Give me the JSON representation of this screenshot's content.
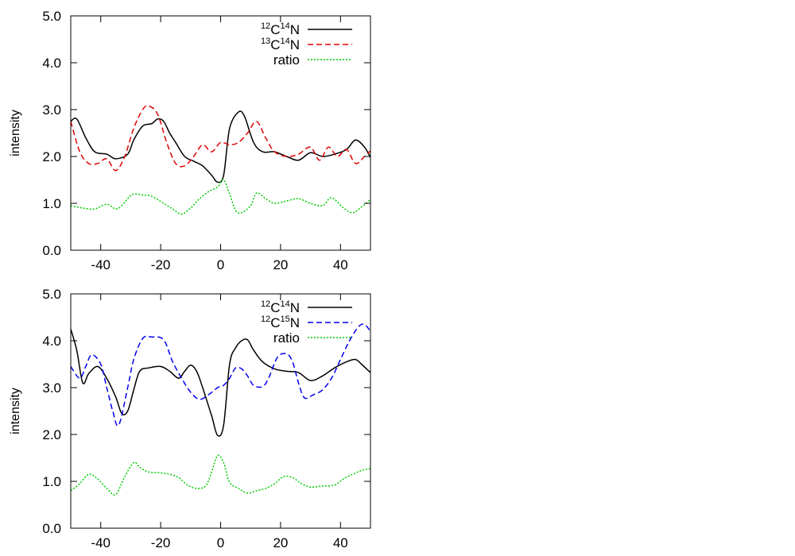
{
  "chart_data": [
    {
      "type": "line",
      "xlabel": "",
      "ylabel": "intensity",
      "xlim": [
        -50,
        50
      ],
      "ylim": [
        0,
        5
      ],
      "xticks": [
        -40,
        -20,
        0,
        20,
        40
      ],
      "xtick_labels": [
        "-40",
        "-20",
        "0",
        "20",
        "40"
      ],
      "yticks": [
        0,
        1,
        2,
        3,
        4,
        5
      ],
      "ytick_labels": [
        "0.0",
        "1.0",
        "2.0",
        "3.0",
        "4.0",
        "5.0"
      ],
      "legend_position": "top-right",
      "series": [
        {
          "name": "12C14N",
          "legend": {
            "sup1": "12",
            "el1": "C",
            "sup2": "14",
            "el2": "N"
          },
          "color": "#000000",
          "dash": "solid",
          "x": [
            -50,
            -48,
            -45,
            -42,
            -38,
            -35,
            -31,
            -29,
            -26,
            -23,
            -21,
            -19,
            -17,
            -15,
            -12,
            -9,
            -6,
            -3,
            -1,
            1,
            3,
            6,
            8,
            11,
            14,
            18,
            22,
            26,
            30,
            34,
            38,
            42,
            45,
            48,
            50
          ],
          "y": [
            2.75,
            2.8,
            2.4,
            2.1,
            2.05,
            1.95,
            2.05,
            2.35,
            2.65,
            2.7,
            2.8,
            2.75,
            2.5,
            2.3,
            2.0,
            1.9,
            1.8,
            1.6,
            1.45,
            1.6,
            2.6,
            2.95,
            2.85,
            2.3,
            2.1,
            2.1,
            2.0,
            1.92,
            2.08,
            2.0,
            2.05,
            2.15,
            2.35,
            2.2,
            1.98
          ]
        },
        {
          "name": "13C14N",
          "legend": {
            "sup1": "13",
            "el1": "C",
            "sup2": "14",
            "el2": "N"
          },
          "color": "#e00000",
          "dash": "dashed",
          "x": [
            -50,
            -47,
            -44,
            -41,
            -38,
            -35,
            -32,
            -29,
            -26,
            -24,
            -21,
            -18,
            -15,
            -12,
            -9,
            -6,
            -3,
            0,
            3,
            6,
            9,
            12,
            15,
            18,
            22,
            26,
            30,
            33,
            36,
            39,
            42,
            45,
            48,
            50
          ],
          "y": [
            2.75,
            2.1,
            1.85,
            1.85,
            1.95,
            1.7,
            2.0,
            2.6,
            3.0,
            3.08,
            2.9,
            2.3,
            1.85,
            1.8,
            2.0,
            2.25,
            2.1,
            2.3,
            2.25,
            2.3,
            2.5,
            2.75,
            2.4,
            2.1,
            2.0,
            2.05,
            2.2,
            1.92,
            2.2,
            2.0,
            2.15,
            1.85,
            2.0,
            2.12
          ]
        },
        {
          "name": "ratio",
          "legend": {
            "text": "ratio"
          },
          "color": "#00cc00",
          "dash": "dotted",
          "x": [
            -50,
            -46,
            -42,
            -38,
            -35,
            -33,
            -31,
            -29,
            -26,
            -23,
            -19,
            -16,
            -13,
            -10,
            -7,
            -4,
            -1,
            1,
            3,
            5,
            7,
            10,
            12,
            15,
            18,
            22,
            26,
            30,
            34,
            37,
            41,
            44,
            47,
            50
          ],
          "y": [
            0.95,
            0.9,
            0.88,
            0.98,
            0.88,
            0.95,
            1.1,
            1.2,
            1.18,
            1.15,
            1.0,
            0.88,
            0.77,
            0.9,
            1.1,
            1.25,
            1.35,
            1.5,
            1.2,
            0.85,
            0.8,
            0.95,
            1.22,
            1.1,
            1.0,
            1.05,
            1.1,
            1.0,
            0.95,
            1.12,
            0.9,
            0.8,
            0.92,
            1.08
          ]
        }
      ]
    },
    {
      "type": "line",
      "xlabel": "",
      "ylabel": "intensity",
      "xlim": [
        -50,
        50
      ],
      "ylim": [
        0,
        5
      ],
      "xticks": [
        -40,
        -20,
        0,
        20,
        40
      ],
      "xtick_labels": [
        "-40",
        "-20",
        "0",
        "20",
        "40"
      ],
      "yticks": [
        0,
        1,
        2,
        3,
        4,
        5
      ],
      "ytick_labels": [
        "0.0",
        "1.0",
        "2.0",
        "3.0",
        "4.0",
        "5.0"
      ],
      "legend_position": "top-right",
      "series": [
        {
          "name": "12C14N",
          "legend": {
            "sup1": "12",
            "el1": "C",
            "sup2": "14",
            "el2": "N"
          },
          "color": "#000000",
          "dash": "solid",
          "x": [
            -50,
            -48,
            -46,
            -44,
            -41,
            -38,
            -35,
            -33,
            -31,
            -29,
            -27,
            -24,
            -20,
            -17,
            -14,
            -12,
            -10,
            -8,
            -6,
            -3,
            -1,
            1,
            3,
            5,
            7,
            9,
            11,
            14,
            18,
            22,
            26,
            30,
            34,
            38,
            42,
            45,
            47,
            50
          ],
          "y": [
            4.25,
            3.8,
            3.1,
            3.3,
            3.45,
            3.2,
            2.8,
            2.45,
            2.5,
            2.95,
            3.35,
            3.42,
            3.45,
            3.35,
            3.2,
            3.35,
            3.48,
            3.35,
            3.0,
            2.4,
            1.98,
            2.2,
            3.5,
            3.85,
            4.0,
            4.02,
            3.8,
            3.55,
            3.4,
            3.35,
            3.32,
            3.15,
            3.25,
            3.42,
            3.55,
            3.6,
            3.5,
            3.32
          ]
        },
        {
          "name": "12C15N",
          "legend": {
            "sup1": "12",
            "el1": "C",
            "sup2": "15",
            "el2": "N"
          },
          "color": "#0000ee",
          "dash": "dashed",
          "x": [
            -50,
            -47,
            -45,
            -43,
            -40,
            -38,
            -36,
            -34,
            -31,
            -29,
            -26,
            -23,
            -19,
            -16,
            -13,
            -10,
            -7,
            -4,
            -1,
            1,
            3,
            5,
            7,
            9,
            11,
            14,
            16,
            19,
            22,
            24,
            26,
            28,
            31,
            34,
            37,
            40,
            43,
            46,
            48,
            50
          ],
          "y": [
            3.45,
            3.2,
            3.45,
            3.7,
            3.5,
            3.0,
            2.5,
            2.2,
            3.0,
            3.6,
            4.05,
            4.08,
            4.02,
            3.55,
            3.2,
            2.9,
            2.75,
            2.85,
            3.0,
            3.05,
            3.2,
            3.42,
            3.4,
            3.25,
            3.05,
            3.02,
            3.2,
            3.65,
            3.72,
            3.55,
            3.1,
            2.78,
            2.85,
            2.95,
            3.2,
            3.6,
            4.0,
            4.3,
            4.35,
            4.2
          ]
        },
        {
          "name": "ratio",
          "legend": {
            "text": "ratio"
          },
          "color": "#00cc00",
          "dash": "dotted",
          "x": [
            -50,
            -47,
            -44,
            -41,
            -38,
            -35,
            -32,
            -29,
            -27,
            -24,
            -20,
            -17,
            -14,
            -11,
            -8,
            -5,
            -3,
            -1,
            1,
            3,
            6,
            9,
            12,
            15,
            18,
            21,
            24,
            27,
            30,
            34,
            38,
            41,
            45,
            48,
            50
          ],
          "y": [
            0.8,
            0.95,
            1.15,
            1.05,
            0.85,
            0.72,
            1.1,
            1.4,
            1.3,
            1.2,
            1.18,
            1.15,
            1.08,
            0.92,
            0.85,
            0.9,
            1.2,
            1.55,
            1.4,
            0.98,
            0.85,
            0.75,
            0.8,
            0.85,
            0.95,
            1.1,
            1.08,
            0.95,
            0.88,
            0.9,
            0.92,
            1.05,
            1.18,
            1.25,
            1.27
          ]
        }
      ]
    }
  ]
}
